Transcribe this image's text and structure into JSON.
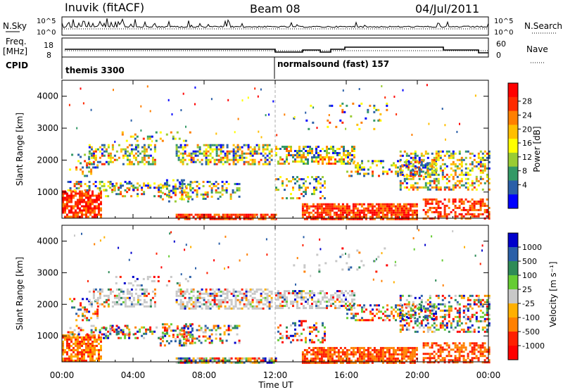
{
  "header": {
    "station": "Inuvik (fitACF)",
    "beam": "Beam 08",
    "date": "04/Jul/2011"
  },
  "params": {
    "nsky_label": "N.Sky",
    "nsky_ticks": [
      "10^5",
      "10^0"
    ],
    "nsearch_label": "N.Search",
    "nsearch_ticks": [
      "10^5",
      "10^0"
    ],
    "freq_label": "Freq.",
    "freq_unit": "[MHz]",
    "freq_ticks": [
      "18",
      "8"
    ],
    "nave_label": "Nave",
    "nave_ticks": [
      "60",
      "0"
    ],
    "cpid_label": "CPID",
    "cpid_segments": [
      {
        "label": "themis 3300",
        "start_hour": 0
      },
      {
        "label": "normalsound (fast) 157",
        "start_hour": 12
      }
    ]
  },
  "chart_data": [
    {
      "type": "heatmap",
      "name": "power",
      "xlabel": "",
      "ylabel": "Slant Range [km]",
      "x_ticks": [
        "00:00",
        "04:00",
        "08:00",
        "12:00",
        "16:00",
        "20:00",
        "00:00"
      ],
      "xlim_hours": [
        0,
        24
      ],
      "y_ticks": [
        1000,
        2000,
        3000,
        4000
      ],
      "ylim": [
        180,
        4500
      ],
      "colorbar_label": "Power [dB]",
      "colorbar_ticks": [
        "28",
        "24",
        "20",
        "16",
        "12",
        "8",
        "4"
      ],
      "colorbar_colors": [
        "#ff0000",
        "#ff2a00",
        "#ff7f00",
        "#ffbf00",
        "#ffff00",
        "#99cc33",
        "#339966",
        "#2a5fa8",
        "#0000ff"
      ],
      "dashed_marker_hour": 12
    },
    {
      "type": "heatmap",
      "name": "velocity",
      "xlabel": "Time UT",
      "ylabel": "Slant Range [km]",
      "x_ticks": [
        "00:00",
        "04:00",
        "08:00",
        "12:00",
        "16:00",
        "20:00",
        "00:00"
      ],
      "xlim_hours": [
        0,
        24
      ],
      "y_ticks": [
        1000,
        2000,
        3000,
        4000
      ],
      "ylim": [
        180,
        4500
      ],
      "colorbar_label": "Velocity [m s⁻¹]",
      "colorbar_ticks": [
        "1000",
        "500",
        "100",
        "25",
        "-25",
        "-100",
        "-500",
        "-1000"
      ],
      "colorbar_colors": [
        "#0000cc",
        "#2a5fa8",
        "#2e8b57",
        "#66cc33",
        "#c8c8c8",
        "#ffb000",
        "#ff8000",
        "#ff2000",
        "#ff0000"
      ],
      "ground_scatter_color": "#c0c0c0",
      "dashed_marker_hour": 12
    }
  ]
}
